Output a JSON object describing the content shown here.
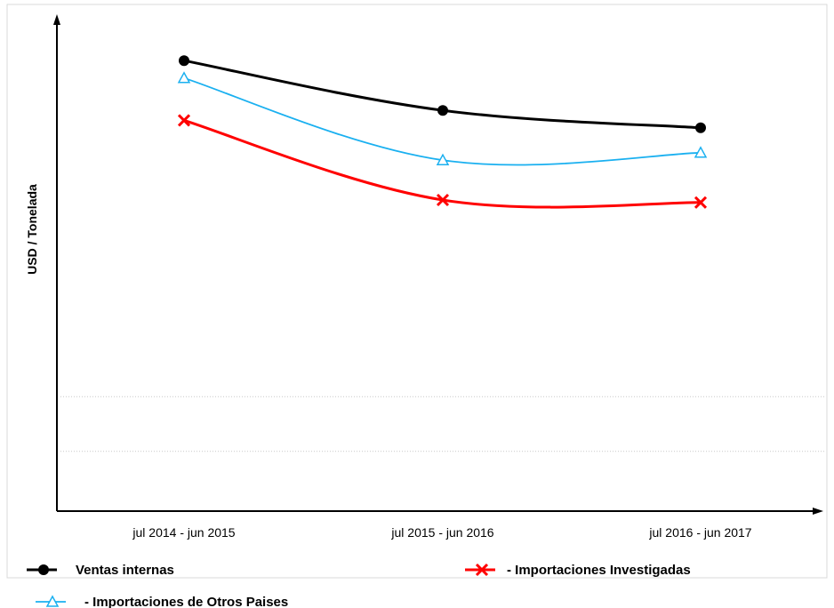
{
  "chart_data": {
    "type": "line",
    "title": "",
    "xlabel": "",
    "ylabel": "USD / Tonelada",
    "categories": [
      "jul 2014 - jun 2015",
      "jul 2015 - jun 2016",
      "jul 2016 - jun 2017"
    ],
    "ylim": [
      0,
      100
    ],
    "y_ticks_shown": false,
    "grid": "partial-horizontal-dotted",
    "legend_position": "bottom",
    "series": [
      {
        "name": "Ventas internas",
        "legend_label": "Ventas internas",
        "marker": "circle",
        "color": "#000000",
        "values": [
          90.5,
          80.5,
          77
        ]
      },
      {
        "name": "Importaciones Investigadas",
        "legend_label": "- Importaciones  Investigadas",
        "marker": "x",
        "color": "#ff0000",
        "values": [
          78.5,
          62.5,
          62
        ]
      },
      {
        "name": "Importaciones de Otros Paises",
        "legend_label": "- Importaciones de Otros Paises",
        "marker": "triangle",
        "color": "#1ab0f0",
        "values": [
          87,
          70.5,
          72
        ]
      }
    ]
  }
}
